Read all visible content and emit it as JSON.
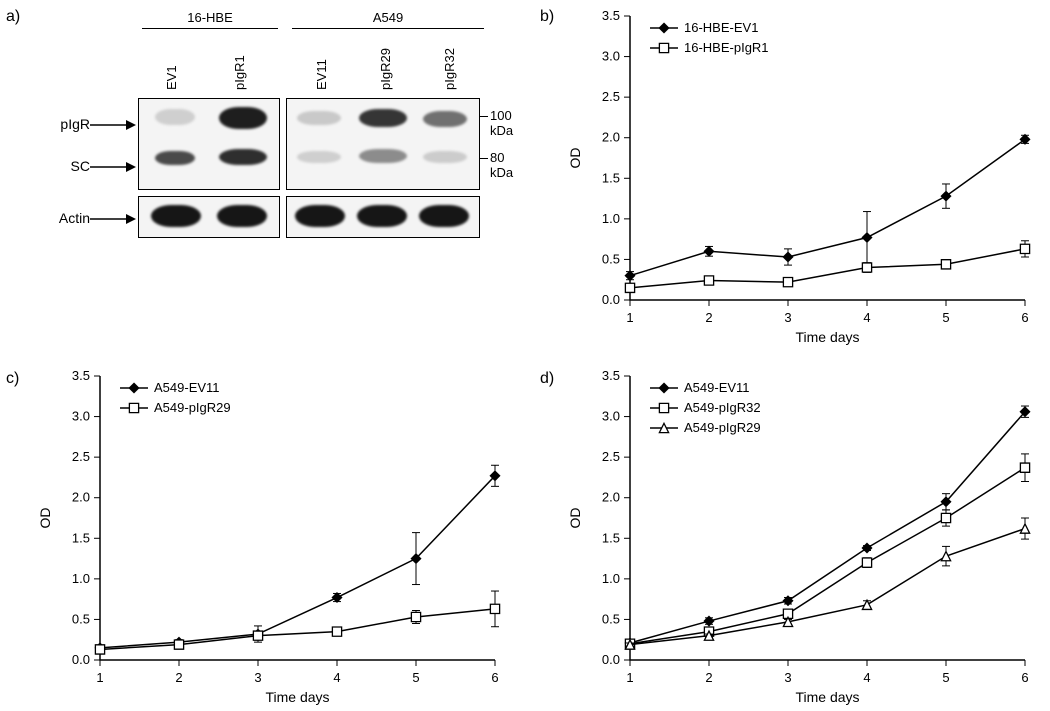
{
  "panel_labels": {
    "a": "a)",
    "b": "b)",
    "c": "c)",
    "d": "d)"
  },
  "panel_a": {
    "groups": [
      "16-HBE",
      "A549"
    ],
    "lanes_16hbe": [
      "EV1",
      "pIgR1"
    ],
    "lanes_a549": [
      "EV11",
      "pIgR29",
      "pIgR32"
    ],
    "row_labels": [
      "pIgR",
      "SC",
      "Actin"
    ],
    "mw_labels": [
      "100 kDa",
      "80 kDa"
    ],
    "arrow_color": "#000000",
    "border_color": "#000000",
    "blot_bg": "#f2f2f2",
    "band_dark": "#1f1f1f",
    "band_mid": "#6b6b6b",
    "band_faint": "#bdbdbd"
  },
  "chart_common": {
    "x_label": "Time days",
    "y_label": "OD",
    "x_ticks": [
      1,
      2,
      3,
      4,
      5,
      6
    ],
    "y_ticks": [
      0,
      0.5,
      1.0,
      1.5,
      2.0,
      2.5,
      3.0,
      3.5
    ],
    "y_tick_labels": [
      "0.0",
      "0.5",
      "1.0",
      "1.5",
      "2.0",
      "2.5",
      "3.0",
      "3.5"
    ],
    "ylim": [
      0,
      3.5
    ],
    "xlim": [
      1,
      6
    ],
    "axis_color": "#000000",
    "line_color": "#000000",
    "marker_size": 6,
    "marker_fill_closed": "#000000",
    "marker_fill_open": "#ffffff",
    "marker_stroke": "#000000",
    "errorbar_cap": 4,
    "label_fontsize": 14,
    "tick_fontsize": 13,
    "legend_fontsize": 13,
    "line_width": 1.5,
    "background": "#ffffff"
  },
  "panel_b": {
    "legend": [
      "16-HBE-EV1",
      "16-HBE-pIgR1"
    ],
    "series": [
      {
        "name": "16-HBE-EV1",
        "marker": "diamond-filled",
        "y": [
          0.3,
          0.6,
          0.53,
          0.77,
          1.28,
          1.98
        ],
        "err": [
          0.05,
          0.06,
          0.1,
          0.32,
          0.15,
          0.05
        ]
      },
      {
        "name": "16-HBE-pIgR1",
        "marker": "square-open",
        "y": [
          0.15,
          0.24,
          0.22,
          0.4,
          0.44,
          0.63
        ],
        "err": [
          0.03,
          0.03,
          0.03,
          0.06,
          0.05,
          0.1
        ]
      }
    ]
  },
  "panel_c": {
    "legend": [
      "A549-EV11",
      "A549-pIgR29"
    ],
    "series": [
      {
        "name": "A549-EV11",
        "marker": "diamond-filled",
        "y": [
          0.15,
          0.22,
          0.32,
          0.77,
          1.25,
          2.27
        ],
        "err": [
          0.02,
          0.03,
          0.1,
          0.05,
          0.32,
          0.13
        ]
      },
      {
        "name": "A549-pIgR29",
        "marker": "square-open",
        "y": [
          0.13,
          0.19,
          0.3,
          0.35,
          0.53,
          0.63
        ],
        "err": [
          0.02,
          0.02,
          0.05,
          0.04,
          0.08,
          0.22
        ]
      }
    ]
  },
  "panel_d": {
    "legend": [
      "A549-EV11",
      "A549-pIgR32",
      "A549-pIgR29"
    ],
    "series": [
      {
        "name": "A549-EV11",
        "marker": "diamond-filled",
        "y": [
          0.21,
          0.48,
          0.73,
          1.38,
          1.95,
          3.06
        ],
        "err": [
          0.02,
          0.04,
          0.04,
          0.03,
          0.1,
          0.07
        ]
      },
      {
        "name": "A549-pIgR32",
        "marker": "square-open",
        "y": [
          0.2,
          0.35,
          0.57,
          1.2,
          1.75,
          2.37
        ],
        "err": [
          0.02,
          0.03,
          0.04,
          0.06,
          0.1,
          0.17
        ]
      },
      {
        "name": "A549-pIgR29",
        "marker": "triangle-open",
        "y": [
          0.19,
          0.3,
          0.47,
          0.68,
          1.28,
          1.62
        ],
        "err": [
          0.02,
          0.02,
          0.03,
          0.05,
          0.12,
          0.13
        ]
      }
    ]
  }
}
